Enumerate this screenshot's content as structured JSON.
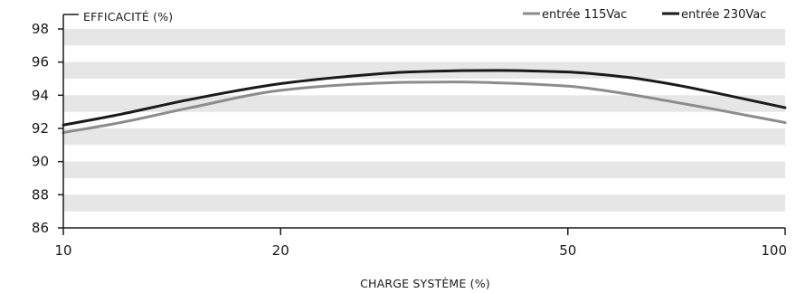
{
  "chart_data": {
    "type": "line",
    "ylabel": "EFFICACITÉ (%)",
    "xlabel": "CHARGE SYSTÈME (%)",
    "x_scale": "log",
    "xlim": [
      10,
      100
    ],
    "ylim": [
      86,
      98
    ],
    "x_ticks": [
      10,
      20,
      50,
      100
    ],
    "y_ticks": [
      86,
      88,
      90,
      92,
      94,
      96,
      98
    ],
    "grid": "alternating horizontal bands",
    "legend": "top-right",
    "series": [
      {
        "name": "entrée 115Vac",
        "color": "#8c8c8c",
        "x": [
          10,
          12,
          15,
          20,
          25,
          30,
          35,
          40,
          50,
          60,
          70,
          80,
          100
        ],
        "y": [
          91.75,
          92.35,
          93.25,
          94.3,
          94.65,
          94.78,
          94.8,
          94.75,
          94.55,
          94.1,
          93.6,
          93.15,
          92.35
        ]
      },
      {
        "name": "entrée 230Vac",
        "color": "#1a1a1a",
        "x": [
          10,
          12,
          15,
          20,
          25,
          30,
          35,
          40,
          50,
          60,
          70,
          80,
          100
        ],
        "y": [
          92.2,
          92.85,
          93.75,
          94.7,
          95.15,
          95.4,
          95.48,
          95.5,
          95.4,
          95.1,
          94.65,
          94.15,
          93.25
        ]
      }
    ]
  }
}
